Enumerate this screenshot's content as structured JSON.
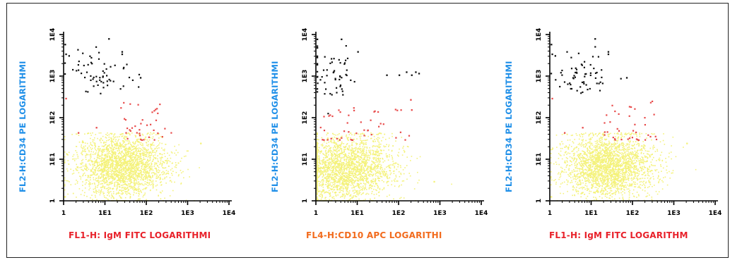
{
  "chart_data": [
    {
      "type": "scatter",
      "ylabel": "FL2-H:CD34 PE LOGARITHMI",
      "xlabel": "FL1-H: IgM FITC LOGARITHMI",
      "xlabel_color": "#e8212a",
      "xscale": "log",
      "yscale": "log",
      "xlim": [
        1,
        10000
      ],
      "ylim": [
        1,
        10000
      ],
      "x_ticks": [
        "1",
        "1E1",
        "1E2",
        "1E3",
        "1E4"
      ],
      "y_ticks": [
        "1",
        "1E1",
        "1E2",
        "1E3",
        "1E4"
      ],
      "grid": false,
      "clusters": [
        {
          "color": "#f4f27a",
          "count": 2400,
          "center": [
            25,
            7
          ],
          "spread": [
            0.55,
            0.38
          ],
          "shape": "blob"
        },
        {
          "color": "#e84a4a",
          "count": 38,
          "xrange": [
            20,
            400
          ],
          "yrange": [
            30,
            260
          ],
          "shape": "band"
        },
        {
          "color": "#111111",
          "count": 60,
          "center": [
            6,
            1200
          ],
          "spread": [
            0.38,
            0.28
          ],
          "shape": "cloud"
        }
      ],
      "points": [
        {
          "x": 1.05,
          "y": 6000,
          "color": "#111111"
        },
        {
          "x": 1.1,
          "y": 3500,
          "color": "#111111"
        },
        {
          "x": 1.3,
          "y": 3200,
          "color": "#111111"
        },
        {
          "x": 12,
          "y": 8200,
          "color": "#111111"
        },
        {
          "x": 25,
          "y": 4000,
          "color": "#111111"
        },
        {
          "x": 25,
          "y": 3500,
          "color": "#111111"
        },
        {
          "x": 70,
          "y": 950,
          "color": "#111111"
        },
        {
          "x": 1.1,
          "y": 300,
          "color": "#e84a4a"
        },
        {
          "x": 2.2,
          "y": 45,
          "color": "#e84a4a"
        },
        {
          "x": 6,
          "y": 60,
          "color": "#e84a4a"
        },
        {
          "x": 2000,
          "y": 25,
          "color": "#f4f27a"
        },
        {
          "x": 1.02,
          "y": 1.3,
          "color": "#f4f27a"
        }
      ]
    },
    {
      "type": "scatter",
      "ylabel": "FL2-H:CD34 PE LOGARITHMI",
      "xlabel": "FL4-H:CD10 APC LOGARITHI",
      "xlabel_color": "#f26b1d",
      "xscale": "log",
      "yscale": "log",
      "xlim": [
        1,
        10000
      ],
      "ylim": [
        1,
        10000
      ],
      "x_ticks": [
        "1",
        "1E1",
        "1E2",
        "1E3",
        "1E4"
      ],
      "y_ticks": [
        "1",
        "1E1",
        "1E2",
        "1E3",
        "1E4"
      ],
      "grid": false,
      "clusters": [
        {
          "color": "#f4f27a",
          "count": 2300,
          "center": [
            5,
            6
          ],
          "spread": [
            0.6,
            0.4
          ],
          "shape": "blob"
        },
        {
          "color": "#e84a4a",
          "count": 45,
          "xrange": [
            1.2,
            220
          ],
          "yrange": [
            30,
            200
          ],
          "shape": "band"
        },
        {
          "color": "#111111",
          "count": 55,
          "center": [
            2.5,
            1000
          ],
          "spread": [
            0.35,
            0.3
          ],
          "shape": "cloud"
        }
      ],
      "points": [
        {
          "x": 1.0,
          "y": 8000,
          "color": "#111111"
        },
        {
          "x": 1.0,
          "y": 5000,
          "color": "#111111"
        },
        {
          "x": 4,
          "y": 8000,
          "color": "#111111"
        },
        {
          "x": 10,
          "y": 4000,
          "color": "#111111"
        },
        {
          "x": 50,
          "y": 1100,
          "color": "#111111"
        },
        {
          "x": 100,
          "y": 1100,
          "color": "#111111"
        },
        {
          "x": 150,
          "y": 1300,
          "color": "#111111"
        },
        {
          "x": 200,
          "y": 1100,
          "color": "#111111"
        },
        {
          "x": 250,
          "y": 1300,
          "color": "#111111"
        },
        {
          "x": 300,
          "y": 1200,
          "color": "#111111"
        },
        {
          "x": 190,
          "y": 280,
          "color": "#e84a4a"
        },
        {
          "x": 200,
          "y": 160,
          "color": "#e84a4a"
        },
        {
          "x": 700,
          "y": 3,
          "color": "#f4f27a"
        }
      ]
    },
    {
      "type": "scatter",
      "ylabel": "FL2-H:CD34 PE LOGARITHMI",
      "xlabel": "FL1-H: IgM FITC LOGARITHM",
      "xlabel_color": "#e8212a",
      "xscale": "log",
      "yscale": "log",
      "xlim": [
        1,
        10000
      ],
      "ylim": [
        1,
        10000
      ],
      "x_ticks": [
        "1",
        "1E1",
        "1E2",
        "1E3",
        "1E4"
      ],
      "y_ticks": [
        "1",
        "1E1",
        "1E2",
        "1E3",
        "1E4"
      ],
      "grid": false,
      "clusters": [
        {
          "color": "#f4f27a",
          "count": 2400,
          "center": [
            25,
            7
          ],
          "spread": [
            0.55,
            0.38
          ],
          "shape": "blob"
        },
        {
          "color": "#e84a4a",
          "count": 38,
          "xrange": [
            20,
            400
          ],
          "yrange": [
            30,
            260
          ],
          "shape": "band"
        },
        {
          "color": "#111111",
          "count": 60,
          "center": [
            6,
            1200
          ],
          "spread": [
            0.38,
            0.28
          ],
          "shape": "cloud"
        }
      ],
      "points": [
        {
          "x": 1.05,
          "y": 6000,
          "color": "#111111"
        },
        {
          "x": 1.1,
          "y": 3500,
          "color": "#111111"
        },
        {
          "x": 1.3,
          "y": 3200,
          "color": "#111111"
        },
        {
          "x": 12,
          "y": 8200,
          "color": "#111111"
        },
        {
          "x": 25,
          "y": 4000,
          "color": "#111111"
        },
        {
          "x": 25,
          "y": 3500,
          "color": "#111111"
        },
        {
          "x": 70,
          "y": 950,
          "color": "#111111"
        },
        {
          "x": 1.1,
          "y": 300,
          "color": "#e84a4a"
        },
        {
          "x": 2.2,
          "y": 45,
          "color": "#e84a4a"
        },
        {
          "x": 6,
          "y": 60,
          "color": "#e84a4a"
        },
        {
          "x": 2000,
          "y": 25,
          "color": "#f4f27a"
        },
        {
          "x": 1.02,
          "y": 1.3,
          "color": "#f4f27a"
        }
      ]
    }
  ]
}
